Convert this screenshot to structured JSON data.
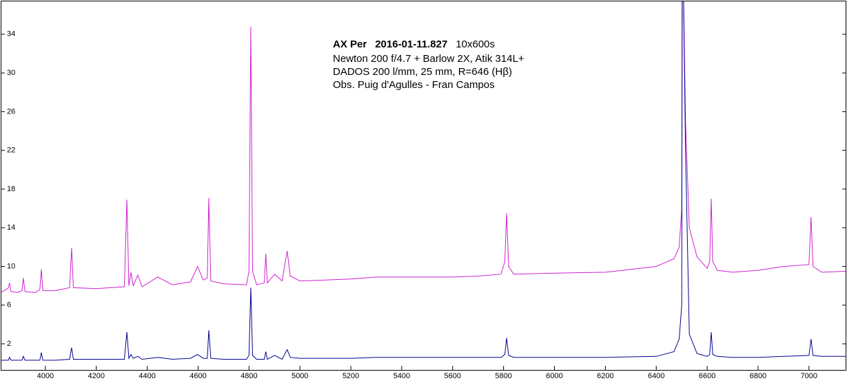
{
  "chart_data": {
    "type": "line",
    "annotation": {
      "object": "AX Per",
      "date": "2016-01-11.827",
      "exposure": "10x600s",
      "lines": [
        "Newton 200 f/4.7 + Barlow 2X, Atik 314L+",
        "DADOS 200 l/mm, 25 mm, R=646 (Hβ)",
        "Obs. Puig d'Agulles - Fran Campos"
      ]
    },
    "x": [
      3825,
      3845,
      3855,
      3859,
      3865,
      3890,
      3908,
      3913,
      3920,
      3960,
      3978,
      3984,
      3990,
      4040,
      4095,
      4103,
      4110,
      4200,
      4310,
      4320,
      4328,
      4336,
      4345,
      4363,
      4380,
      4441,
      4500,
      4570,
      4598,
      4620,
      4636,
      4642,
      4650,
      4700,
      4790,
      4800,
      4807,
      4814,
      4830,
      4860,
      4866,
      4872,
      4901,
      4930,
      4950,
      4962,
      5000,
      5100,
      5200,
      5300,
      5400,
      5500,
      5600,
      5700,
      5790,
      5805,
      5812,
      5820,
      5840,
      6000,
      6200,
      6400,
      6470,
      6490,
      6500,
      6502,
      6506,
      6515,
      6530,
      6560,
      6600,
      6610,
      6616,
      6622,
      6640,
      6700,
      6800,
      6900,
      7000,
      7008,
      7016,
      7050,
      7144
    ],
    "series": [
      {
        "color": "#d020d0",
        "values": [
          7.3,
          7.6,
          7.8,
          8.3,
          7.4,
          7.3,
          7.5,
          8.8,
          7.4,
          7.3,
          7.6,
          9.7,
          7.5,
          7.5,
          7.8,
          11.9,
          7.8,
          7.7,
          7.9,
          16.9,
          8.0,
          9.4,
          8.0,
          9.1,
          7.9,
          8.9,
          8.1,
          8.4,
          10.0,
          8.6,
          8.8,
          17.1,
          8.5,
          8.2,
          8.1,
          9.5,
          34.8,
          9.5,
          8.1,
          8.3,
          11.3,
          8.3,
          9.2,
          8.5,
          11.6,
          9.0,
          8.5,
          8.6,
          8.7,
          8.9,
          8.9,
          8.9,
          8.9,
          9.0,
          9.2,
          10.5,
          15.5,
          10.0,
          9.2,
          9.3,
          9.4,
          10.0,
          10.8,
          12.0,
          16.0,
          40,
          40,
          25,
          14,
          11.0,
          9.8,
          10.5,
          17.0,
          10.5,
          9.6,
          9.4,
          9.6,
          10.0,
          10.2,
          15.1,
          10.0,
          9.4,
          9.5
        ]
      },
      {
        "color": "#000090",
        "values": [
          0.3,
          0.3,
          0.3,
          0.6,
          0.3,
          0.3,
          0.3,
          0.7,
          0.3,
          0.3,
          0.3,
          1.1,
          0.3,
          0.3,
          0.4,
          1.6,
          0.4,
          0.4,
          0.4,
          3.2,
          0.5,
          0.9,
          0.5,
          0.7,
          0.4,
          0.6,
          0.4,
          0.5,
          0.9,
          0.5,
          0.5,
          3.4,
          0.5,
          0.4,
          0.4,
          0.8,
          7.8,
          0.8,
          0.4,
          0.4,
          1.2,
          0.4,
          0.8,
          0.4,
          1.4,
          0.6,
          0.5,
          0.5,
          0.5,
          0.6,
          0.6,
          0.6,
          0.6,
          0.6,
          0.6,
          0.9,
          2.6,
          0.8,
          0.6,
          0.6,
          0.6,
          0.7,
          1.2,
          2.5,
          6,
          40,
          40,
          22,
          3,
          1.0,
          0.7,
          0.9,
          3.2,
          0.9,
          0.7,
          0.6,
          0.6,
          0.7,
          0.8,
          2.5,
          0.8,
          0.7,
          0.7
        ]
      }
    ],
    "xlim": [
      3827,
      7144
    ],
    "ylim": [
      -0.7,
      37.4
    ],
    "xticks": [
      4000,
      4200,
      4400,
      4600,
      4800,
      5000,
      5200,
      5400,
      5600,
      5800,
      6000,
      6200,
      6400,
      6600,
      6800,
      7000
    ],
    "yticks": [
      2,
      6,
      10,
      14,
      18,
      22,
      26,
      30,
      34
    ]
  }
}
